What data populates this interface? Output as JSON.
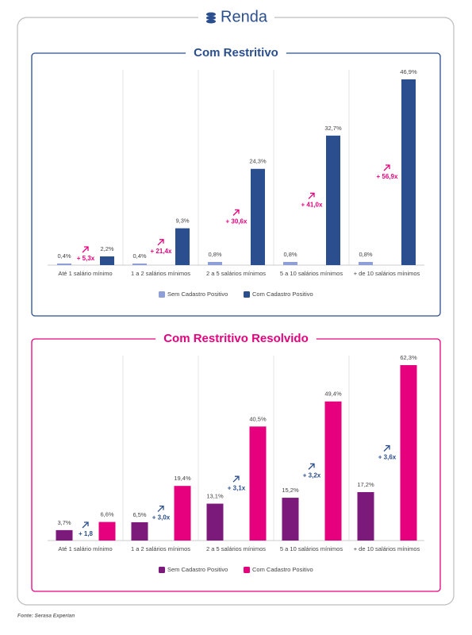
{
  "header": {
    "title": "Renda"
  },
  "chart_data": [
    {
      "type": "bar",
      "title": "Com Restritivo",
      "categories": [
        "Até 1 salário mínimo",
        "1 a 2 salários mínimos",
        "2 a 5 salários mínimos",
        "5 a 10 salários mínimos",
        "+ de 10 salários mínimos"
      ],
      "series": [
        {
          "name": "Sem Cadastro Positivo",
          "color": "#8e9ed6",
          "values": [
            0.4,
            0.4,
            0.8,
            0.8,
            0.8
          ],
          "value_labels": [
            "0,4%",
            "0,4%",
            "0,8%",
            "0,8%",
            "0,8%"
          ]
        },
        {
          "name": "Com Cadastro Positivo",
          "color": "#2b4f8e",
          "values": [
            2.2,
            9.3,
            24.3,
            32.7,
            46.9
          ],
          "value_labels": [
            "2,2%",
            "9,3%",
            "24,3%",
            "32,7%",
            "46,9%"
          ]
        }
      ],
      "annotations": [
        "+ 5,3x",
        "+ 21,4x",
        "+ 30,6x",
        "+ 41,0x",
        "+ 56,9x"
      ],
      "annotation_color": "#e6007e"
    },
    {
      "type": "bar",
      "title": "Com Restritivo Resolvido",
      "categories": [
        "Até 1 salário mínimo",
        "1 a 2 salários mínimos",
        "2 a 5 salários mínimos",
        "5 a 10 salários mínimos",
        "+ de 10 salários mínimos"
      ],
      "series": [
        {
          "name": "Sem Cadastro Positivo",
          "color": "#7b1a7a",
          "values": [
            3.7,
            6.5,
            13.1,
            15.2,
            17.2
          ],
          "value_labels": [
            "3,7%",
            "6,5%",
            "13,1%",
            "15,2%",
            "17,2%"
          ]
        },
        {
          "name": "Com Cadastro Positivo",
          "color": "#e6007e",
          "values": [
            6.6,
            19.4,
            40.5,
            49.4,
            62.3
          ],
          "value_labels": [
            "6,6%",
            "19,4%",
            "40,5%",
            "49,4%",
            "62,3%"
          ]
        }
      ],
      "annotations": [
        "+ 1,8",
        "+ 3,0x",
        "+ 3,1x",
        "+ 3,2x",
        "+ 3,6x"
      ],
      "annotation_color": "#2b4f8e"
    }
  ],
  "source": "Fonte: Serasa Experian"
}
